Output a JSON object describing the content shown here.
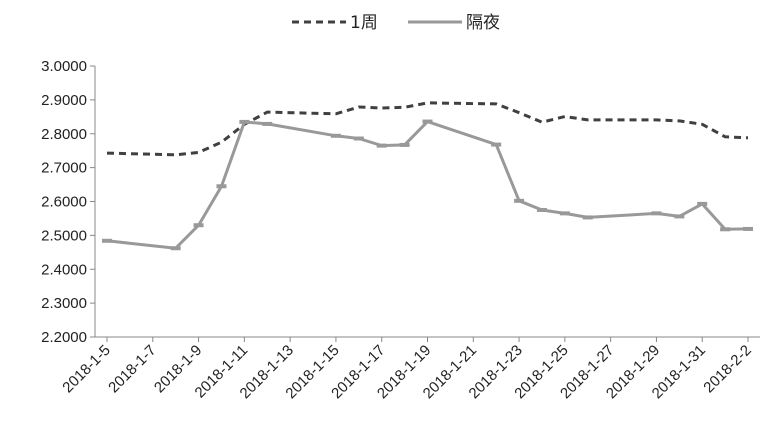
{
  "chart_data": {
    "type": "line",
    "title": "",
    "xlabel": "",
    "ylabel": "",
    "ylim": [
      2.2,
      3.0
    ],
    "ytick_step": 0.1,
    "yticks": [
      "3.0000",
      "2.9000",
      "2.8000",
      "2.7000",
      "2.6000",
      "2.5000",
      "2.4000",
      "2.3000",
      "2.2000"
    ],
    "xticks": [
      "2018-1-5",
      "2018-1-7",
      "2018-1-9",
      "2018-1-11",
      "2018-1-13",
      "2018-1-15",
      "2018-1-17",
      "2018-1-19",
      "2018-1-21",
      "2018-1-23",
      "2018-1-25",
      "2018-1-27",
      "2018-1-29",
      "2018-1-31",
      "2018-2-2"
    ],
    "grid": false,
    "legend_position": "top",
    "series": [
      {
        "name": "1周",
        "style": "dashed",
        "color": "#404040",
        "x": [
          "2018-1-5",
          "2018-1-8",
          "2018-1-9",
          "2018-1-10",
          "2018-1-11",
          "2018-1-12",
          "2018-1-15",
          "2018-1-16",
          "2018-1-17",
          "2018-1-18",
          "2018-1-19",
          "2018-1-22",
          "2018-1-23",
          "2018-1-24",
          "2018-1-25",
          "2018-1-26",
          "2018-1-29",
          "2018-1-30",
          "2018-1-31",
          "2018-2-1",
          "2018-2-2"
        ],
        "values": [
          2.743,
          2.738,
          2.745,
          2.775,
          2.828,
          2.864,
          2.859,
          2.879,
          2.876,
          2.878,
          2.891,
          2.888,
          2.862,
          2.834,
          2.851,
          2.841,
          2.841,
          2.838,
          2.828,
          2.791,
          2.788
        ]
      },
      {
        "name": "隔夜",
        "style": "solid",
        "color": "#999999",
        "x": [
          "2018-1-5",
          "2018-1-8",
          "2018-1-9",
          "2018-1-10",
          "2018-1-11",
          "2018-1-12",
          "2018-1-15",
          "2018-1-16",
          "2018-1-17",
          "2018-1-18",
          "2018-1-19",
          "2018-1-22",
          "2018-1-23",
          "2018-1-24",
          "2018-1-25",
          "2018-1-26",
          "2018-1-29",
          "2018-1-30",
          "2018-1-31",
          "2018-2-1",
          "2018-2-2"
        ],
        "values": [
          2.484,
          2.462,
          2.53,
          2.645,
          2.835,
          2.829,
          2.794,
          2.786,
          2.765,
          2.767,
          2.836,
          2.768,
          2.602,
          2.575,
          2.565,
          2.553,
          2.565,
          2.556,
          2.593,
          2.518,
          2.519
        ]
      }
    ]
  }
}
